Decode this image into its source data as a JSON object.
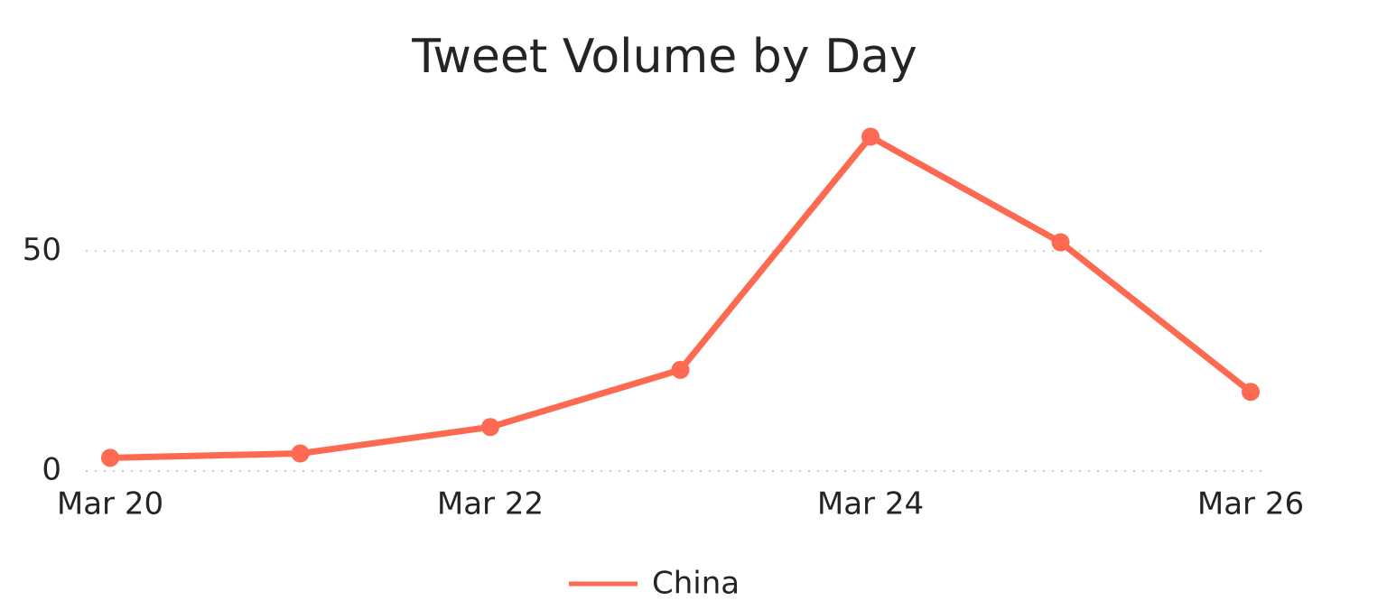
{
  "chart_data": {
    "type": "line",
    "title": "Tweet Volume by Day",
    "categories": [
      "Mar 20",
      null,
      "Mar 22",
      null,
      "Mar 24",
      null,
      "Mar 26"
    ],
    "series": [
      {
        "name": "China",
        "color": "#fd6a51",
        "values": [
          3,
          4,
          10,
          23,
          76,
          52,
          18
        ]
      }
    ],
    "ylim": [
      0,
      80
    ],
    "yticks": [
      0,
      50
    ],
    "grid": true
  }
}
